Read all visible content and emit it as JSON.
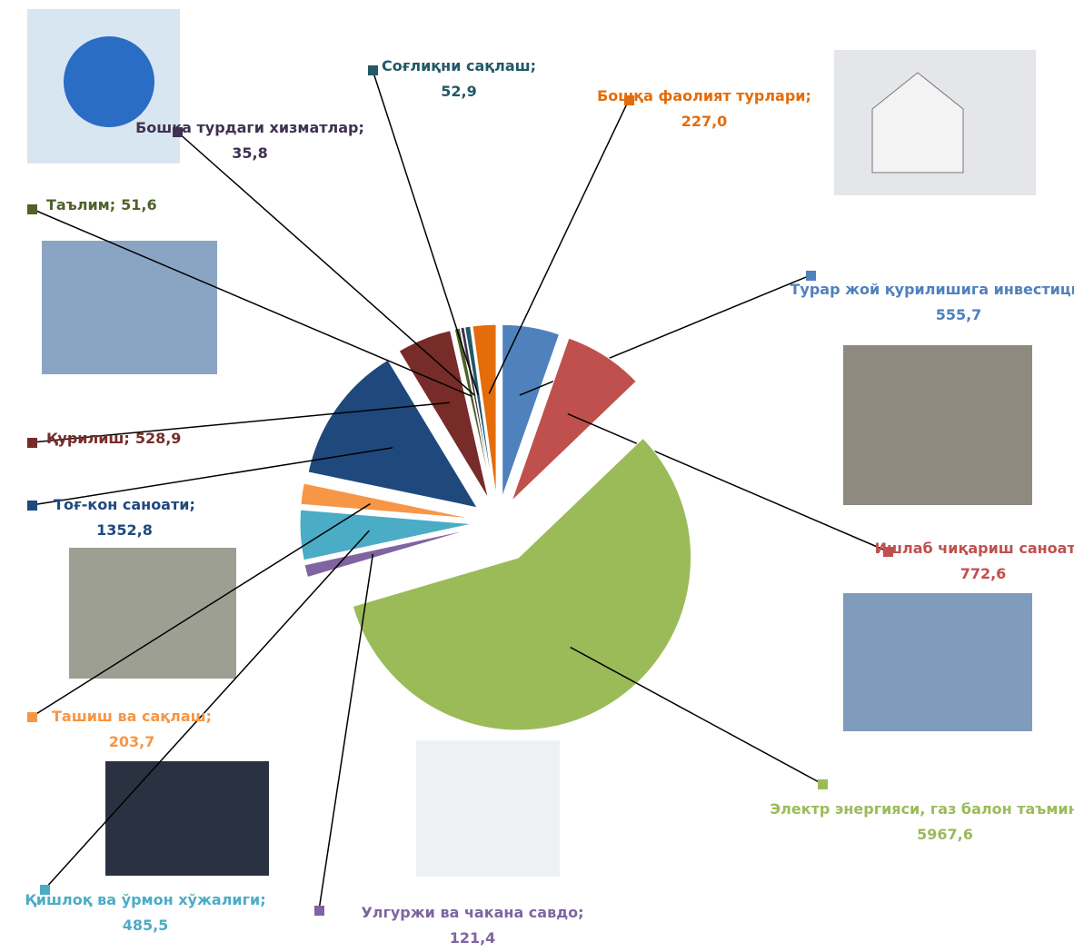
{
  "chart_data": {
    "type": "pie",
    "categories": [
      "Турар жой  қурилишига инвестициялар;",
      "Ишлаб чиқариш саноати;",
      "Электр энергияси, газ балон таъминлаш;",
      "Улгуржи ва чакана савдо;",
      "Қишлоқ ва ўрмон хўжалиги;",
      "Ташиш ва сақлаш;",
      "Тоғ-кон саноати;",
      "Қурилиш;",
      "Таълим;",
      "Бошқа турдаги хизматлар;",
      "Соғлиқни сақлаш;",
      "Бошқа фаолият турлари;"
    ],
    "values": [
      555.7,
      772.6,
      5967.6,
      121.4,
      485.5,
      203.7,
      1352.8,
      528.9,
      51.6,
      35.8,
      52.9,
      227.0
    ],
    "value_labels": [
      "555,7",
      "772,6",
      "5967,6",
      "121,4",
      "485,5",
      "203,7",
      "1352,8",
      "528,9",
      "51,6",
      "35,8",
      "52,9",
      "227,0"
    ],
    "colors": [
      "#4f81bd",
      "#c0504d",
      "#9bbb59",
      "#8064a2",
      "#4bacc6",
      "#f79646",
      "#1f497d",
      "#772c2a",
      "#4f6228",
      "#3f3151",
      "#215968",
      "#e46c0a"
    ]
  }
}
